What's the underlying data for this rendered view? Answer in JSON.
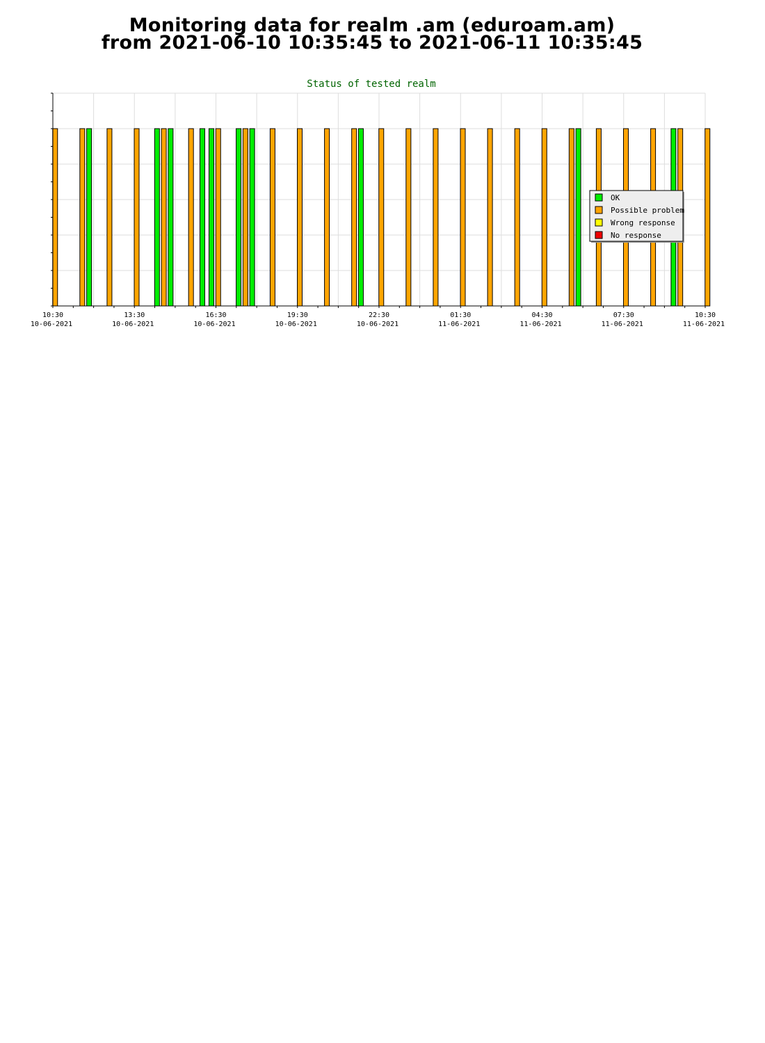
{
  "header": {
    "line1": "Monitoring data for realm .am  (eduroam.am)",
    "line2": "from 2021-06-10 10:35:45 to 2021-06-11 10:35:45"
  },
  "colors": {
    "ok": "#00ee00",
    "possible_problem": "#ffa500",
    "wrong_response": "#ffff00",
    "no_response": "#ee0000",
    "grid": "#dddddd",
    "title": "#006400",
    "legend_bg": "#eeeeee"
  },
  "chart_data": {
    "type": "bar",
    "title": "Status of tested realm",
    "xlabel": "",
    "ylabel": "",
    "x_axis": {
      "start": "2021-06-10 10:30",
      "end": "2021-06-11 10:30",
      "tick_labels": [
        {
          "time": "10:30",
          "date": "10-06-2021"
        },
        {
          "time": "13:30",
          "date": "10-06-2021"
        },
        {
          "time": "16:30",
          "date": "10-06-2021"
        },
        {
          "time": "19:30",
          "date": "10-06-2021"
        },
        {
          "time": "22:30",
          "date": "10-06-2021"
        },
        {
          "time": "01:30",
          "date": "11-06-2021"
        },
        {
          "time": "04:30",
          "date": "11-06-2021"
        },
        {
          "time": "07:30",
          "date": "11-06-2021"
        },
        {
          "time": "10:30",
          "date": "11-06-2021"
        }
      ]
    },
    "ylim": [
      0,
      6
    ],
    "grid": true,
    "legend_position": "right",
    "series": [
      {
        "name": "OK",
        "color": "#00ee00",
        "bars": [
          {
            "time": "2021-06-10 11:50",
            "value": 5
          },
          {
            "time": "2021-06-10 14:20",
            "value": 5
          },
          {
            "time": "2021-06-10 14:50",
            "value": 5
          },
          {
            "time": "2021-06-10 16:00",
            "value": 5
          },
          {
            "time": "2021-06-10 16:20",
            "value": 5
          },
          {
            "time": "2021-06-10 17:20",
            "value": 5
          },
          {
            "time": "2021-06-10 17:50",
            "value": 5
          },
          {
            "time": "2021-06-10 21:50",
            "value": 5
          },
          {
            "time": "2021-06-11 05:50",
            "value": 5
          },
          {
            "time": "2021-06-11 09:20",
            "value": 5
          }
        ]
      },
      {
        "name": "Possible problem",
        "color": "#ffa500",
        "bars": [
          {
            "time": "2021-06-10 10:35",
            "value": 5
          },
          {
            "time": "2021-06-10 11:35",
            "value": 5
          },
          {
            "time": "2021-06-10 12:35",
            "value": 5
          },
          {
            "time": "2021-06-10 13:35",
            "value": 5
          },
          {
            "time": "2021-06-10 14:35",
            "value": 5
          },
          {
            "time": "2021-06-10 15:35",
            "value": 5
          },
          {
            "time": "2021-06-10 16:35",
            "value": 5
          },
          {
            "time": "2021-06-10 17:35",
            "value": 5
          },
          {
            "time": "2021-06-10 18:35",
            "value": 5
          },
          {
            "time": "2021-06-10 19:35",
            "value": 5
          },
          {
            "time": "2021-06-10 20:35",
            "value": 5
          },
          {
            "time": "2021-06-10 21:35",
            "value": 5
          },
          {
            "time": "2021-06-10 22:35",
            "value": 5
          },
          {
            "time": "2021-06-10 23:35",
            "value": 5
          },
          {
            "time": "2021-06-11 00:35",
            "value": 5
          },
          {
            "time": "2021-06-11 01:35",
            "value": 5
          },
          {
            "time": "2021-06-11 02:35",
            "value": 5
          },
          {
            "time": "2021-06-11 03:35",
            "value": 5
          },
          {
            "time": "2021-06-11 04:35",
            "value": 5
          },
          {
            "time": "2021-06-11 05:35",
            "value": 5
          },
          {
            "time": "2021-06-11 06:35",
            "value": 5
          },
          {
            "time": "2021-06-11 07:35",
            "value": 5
          },
          {
            "time": "2021-06-11 08:35",
            "value": 5
          },
          {
            "time": "2021-06-11 09:35",
            "value": 5
          },
          {
            "time": "2021-06-11 10:35",
            "value": 5
          }
        ]
      },
      {
        "name": "Wrong response",
        "color": "#ffff00",
        "bars": []
      },
      {
        "name": "No response",
        "color": "#ee0000",
        "bars": []
      }
    ]
  }
}
